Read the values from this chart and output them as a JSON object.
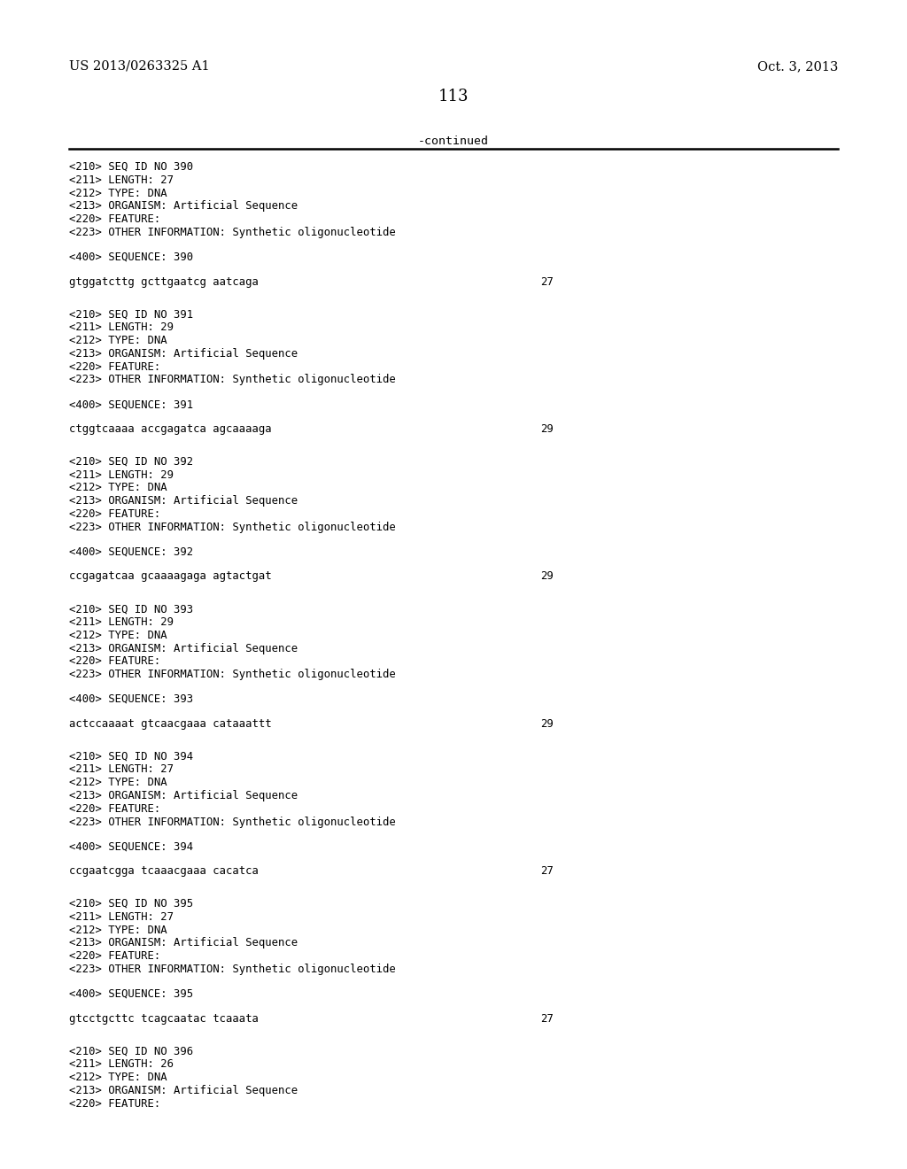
{
  "patent_left": "US 2013/0263325 A1",
  "patent_right": "Oct. 3, 2013",
  "page_number": "113",
  "continued_label": "-continued",
  "background_color": "#ffffff",
  "text_color": "#000000",
  "entries": [
    {
      "seq_id": "390",
      "length": "27",
      "type": "DNA",
      "organism": "Artificial Sequence",
      "has_feature": true,
      "other_info": "Synthetic oligonucleotide",
      "sequence": "gtggatcttg gcttgaatcg aatcaga",
      "seq_num": "27"
    },
    {
      "seq_id": "391",
      "length": "29",
      "type": "DNA",
      "organism": "Artificial Sequence",
      "has_feature": true,
      "other_info": "Synthetic oligonucleotide",
      "sequence": "ctggtcaaaa accgagatca agcaaaaga",
      "seq_num": "29"
    },
    {
      "seq_id": "392",
      "length": "29",
      "type": "DNA",
      "organism": "Artificial Sequence",
      "has_feature": true,
      "other_info": "Synthetic oligonucleotide",
      "sequence": "ccgagatcaa gcaaaagaga agtactgat",
      "seq_num": "29"
    },
    {
      "seq_id": "393",
      "length": "29",
      "type": "DNA",
      "organism": "Artificial Sequence",
      "has_feature": true,
      "other_info": "Synthetic oligonucleotide",
      "sequence": "actccaaaat gtcaacgaaa cataaattt",
      "seq_num": "29"
    },
    {
      "seq_id": "394",
      "length": "27",
      "type": "DNA",
      "organism": "Artificial Sequence",
      "has_feature": true,
      "other_info": "Synthetic oligonucleotide",
      "sequence": "ccgaatcgga tcaaacgaaa cacatca",
      "seq_num": "27"
    },
    {
      "seq_id": "395",
      "length": "27",
      "type": "DNA",
      "organism": "Artificial Sequence",
      "has_feature": true,
      "other_info": "Synthetic oligonucleotide",
      "sequence": "gtcctgcttc tcagcaatac tcaaata",
      "seq_num": "27"
    },
    {
      "seq_id": "396",
      "length": "26",
      "type": "DNA",
      "organism": "Artificial Sequence",
      "has_feature": true,
      "other_info": null,
      "sequence": null,
      "seq_num": null
    }
  ]
}
